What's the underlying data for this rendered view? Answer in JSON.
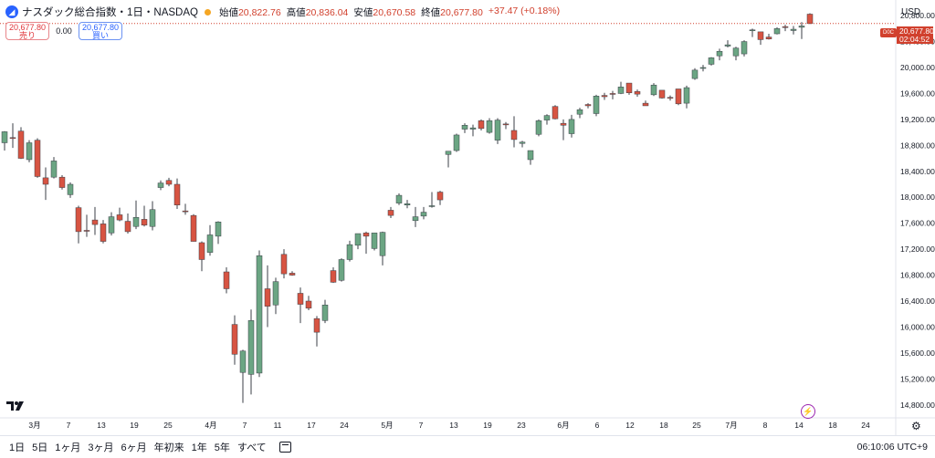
{
  "header": {
    "symbol_name": "ナスダック総合指数・1日・NASDAQ",
    "logo_icon": "nasdaq-logo-icon",
    "ohlc": {
      "open_label": "始値",
      "open_value": "20,822.76",
      "high_label": "高値",
      "high_value": "20,836.04",
      "low_label": "安値",
      "low_value": "20,670.58",
      "close_label": "終値",
      "close_value": "20,677.80",
      "change": "+37.47 (+0.18%)"
    }
  },
  "trade": {
    "sell_price": "20,677.80",
    "sell_label": "売り",
    "spread": "0.00",
    "buy_price": "20,677.80",
    "buy_label": "買い"
  },
  "price_axis": {
    "currency": "USD",
    "badge": "D0C",
    "last_price": "20,677.80",
    "countdown": "02:04:52"
  },
  "toolbar": {
    "ranges": [
      "1日",
      "5日",
      "1ヶ月",
      "3ヶ月",
      "6ヶ月",
      "年初来",
      "1年",
      "5年",
      "すべて"
    ],
    "clock": "06:10:06 UTC+9",
    "calendar_icon": "calendar-icon",
    "settings_icon": "gear-icon"
  },
  "colors": {
    "up": "#6ba583",
    "down": "#d75442",
    "accent": "#2962ff",
    "last": "#d1402d"
  },
  "chart_data": {
    "type": "candlestick",
    "title": "ナスダック総合指数・1日・NASDAQ",
    "ylim": [
      14600,
      20900
    ],
    "y_ticks": [
      14800,
      15200,
      15600,
      16000,
      16400,
      16800,
      17200,
      17600,
      18000,
      18400,
      18800,
      19200,
      19600,
      20000,
      20400,
      20800
    ],
    "x_ticks": [
      "3月",
      "7",
      "13",
      "19",
      "25",
      "4月",
      "7",
      "11",
      "17",
      "24",
      "5月",
      "7",
      "13",
      "19",
      "23",
      "6月",
      "6",
      "12",
      "18",
      "25",
      "7月",
      "8",
      "14",
      "18",
      "24"
    ],
    "grid": false,
    "last_close": 20677.8,
    "candles": [
      {
        "o": 18840,
        "h": 19020,
        "l": 18720,
        "c": 19010
      },
      {
        "o": 18920,
        "h": 19140,
        "l": 18760,
        "c": 18910
      },
      {
        "o": 19020,
        "h": 19080,
        "l": 18590,
        "c": 18600
      },
      {
        "o": 18580,
        "h": 18880,
        "l": 18540,
        "c": 18840
      },
      {
        "o": 18880,
        "h": 18910,
        "l": 18300,
        "c": 18320
      },
      {
        "o": 18300,
        "h": 18460,
        "l": 17960,
        "c": 18200
      },
      {
        "o": 18310,
        "h": 18620,
        "l": 18290,
        "c": 18560
      },
      {
        "o": 18310,
        "h": 18340,
        "l": 18120,
        "c": 18150
      },
      {
        "o": 18040,
        "h": 18230,
        "l": 17990,
        "c": 18200
      },
      {
        "o": 17840,
        "h": 17870,
        "l": 17290,
        "c": 17470
      },
      {
        "o": 17490,
        "h": 17730,
        "l": 17390,
        "c": 17480
      },
      {
        "o": 17650,
        "h": 17850,
        "l": 17420,
        "c": 17580
      },
      {
        "o": 17590,
        "h": 17650,
        "l": 17290,
        "c": 17320
      },
      {
        "o": 17450,
        "h": 17770,
        "l": 17410,
        "c": 17700
      },
      {
        "o": 17730,
        "h": 17840,
        "l": 17630,
        "c": 17650
      },
      {
        "o": 17630,
        "h": 17750,
        "l": 17440,
        "c": 17470
      },
      {
        "o": 17550,
        "h": 17950,
        "l": 17510,
        "c": 17690
      },
      {
        "o": 17660,
        "h": 17870,
        "l": 17550,
        "c": 17570
      },
      {
        "o": 17550,
        "h": 17940,
        "l": 17490,
        "c": 17810
      },
      {
        "o": 18150,
        "h": 18260,
        "l": 18110,
        "c": 18220
      },
      {
        "o": 18260,
        "h": 18300,
        "l": 18170,
        "c": 18200
      },
      {
        "o": 18200,
        "h": 18290,
        "l": 17820,
        "c": 17880
      },
      {
        "o": 17790,
        "h": 17900,
        "l": 17730,
        "c": 17780
      },
      {
        "o": 17720,
        "h": 17740,
        "l": 17320,
        "c": 17320
      },
      {
        "o": 17300,
        "h": 17320,
        "l": 16860,
        "c": 17040
      },
      {
        "o": 17150,
        "h": 17570,
        "l": 17100,
        "c": 17420
      },
      {
        "o": 17400,
        "h": 17630,
        "l": 17280,
        "c": 17620
      },
      {
        "o": 16850,
        "h": 16920,
        "l": 16520,
        "c": 16590
      },
      {
        "o": 16040,
        "h": 16180,
        "l": 15420,
        "c": 15580
      },
      {
        "o": 15300,
        "h": 15650,
        "l": 14830,
        "c": 15630
      },
      {
        "o": 15270,
        "h": 16270,
        "l": 14960,
        "c": 16100
      },
      {
        "o": 15290,
        "h": 17180,
        "l": 15230,
        "c": 17100
      },
      {
        "o": 16590,
        "h": 16950,
        "l": 16000,
        "c": 16320
      },
      {
        "o": 16340,
        "h": 16760,
        "l": 16200,
        "c": 16700
      },
      {
        "o": 17120,
        "h": 17200,
        "l": 16750,
        "c": 16820
      },
      {
        "o": 16830,
        "h": 16860,
        "l": 16790,
        "c": 16800
      },
      {
        "o": 16520,
        "h": 16610,
        "l": 16060,
        "c": 16350
      },
      {
        "o": 16400,
        "h": 16480,
        "l": 16260,
        "c": 16290
      },
      {
        "o": 16130,
        "h": 16170,
        "l": 15700,
        "c": 15920
      },
      {
        "o": 16100,
        "h": 16420,
        "l": 16060,
        "c": 16340
      },
      {
        "o": 16870,
        "h": 16920,
        "l": 16680,
        "c": 16690
      },
      {
        "o": 16720,
        "h": 17060,
        "l": 16700,
        "c": 17040
      },
      {
        "o": 17040,
        "h": 17330,
        "l": 17010,
        "c": 17270
      },
      {
        "o": 17260,
        "h": 17440,
        "l": 17200,
        "c": 17440
      },
      {
        "o": 17450,
        "h": 17470,
        "l": 17130,
        "c": 17400
      },
      {
        "o": 17210,
        "h": 17450,
        "l": 17180,
        "c": 17450
      },
      {
        "o": 17100,
        "h": 17470,
        "l": 16950,
        "c": 17460
      },
      {
        "o": 17800,
        "h": 17850,
        "l": 17680,
        "c": 17720
      },
      {
        "o": 17910,
        "h": 18060,
        "l": 17880,
        "c": 18030
      },
      {
        "o": 17880,
        "h": 17960,
        "l": 17830,
        "c": 17900
      },
      {
        "o": 17640,
        "h": 17850,
        "l": 17540,
        "c": 17700
      },
      {
        "o": 17710,
        "h": 17850,
        "l": 17660,
        "c": 17770
      },
      {
        "o": 17860,
        "h": 18080,
        "l": 17840,
        "c": 17870
      },
      {
        "o": 18080,
        "h": 18100,
        "l": 17880,
        "c": 17960
      },
      {
        "o": 18660,
        "h": 18680,
        "l": 18460,
        "c": 18710
      },
      {
        "o": 18720,
        "h": 18980,
        "l": 18700,
        "c": 18960
      },
      {
        "o": 19050,
        "h": 19140,
        "l": 18990,
        "c": 19110
      },
      {
        "o": 19050,
        "h": 19120,
        "l": 18940,
        "c": 19070
      },
      {
        "o": 19180,
        "h": 19200,
        "l": 19030,
        "c": 19060
      },
      {
        "o": 19000,
        "h": 19220,
        "l": 18980,
        "c": 19180
      },
      {
        "o": 18880,
        "h": 19220,
        "l": 18820,
        "c": 19190
      },
      {
        "o": 19130,
        "h": 19160,
        "l": 19050,
        "c": 19120
      },
      {
        "o": 19030,
        "h": 19250,
        "l": 18770,
        "c": 18890
      },
      {
        "o": 18830,
        "h": 18870,
        "l": 18770,
        "c": 18850
      },
      {
        "o": 18580,
        "h": 18710,
        "l": 18500,
        "c": 18720
      },
      {
        "o": 18970,
        "h": 19200,
        "l": 18940,
        "c": 19180
      },
      {
        "o": 19190,
        "h": 19280,
        "l": 19120,
        "c": 19260
      },
      {
        "o": 19400,
        "h": 19420,
        "l": 19200,
        "c": 19210
      },
      {
        "o": 19140,
        "h": 19200,
        "l": 18880,
        "c": 19110
      },
      {
        "o": 18980,
        "h": 19270,
        "l": 18920,
        "c": 19200
      },
      {
        "o": 19280,
        "h": 19380,
        "l": 19220,
        "c": 19350
      },
      {
        "o": 19430,
        "h": 19450,
        "l": 19370,
        "c": 19410
      },
      {
        "o": 19290,
        "h": 19580,
        "l": 19250,
        "c": 19560
      },
      {
        "o": 19570,
        "h": 19610,
        "l": 19500,
        "c": 19550
      },
      {
        "o": 19600,
        "h": 19640,
        "l": 19510,
        "c": 19590
      },
      {
        "o": 19600,
        "h": 19780,
        "l": 19590,
        "c": 19700
      },
      {
        "o": 19760,
        "h": 19760,
        "l": 19580,
        "c": 19610
      },
      {
        "o": 19630,
        "h": 19660,
        "l": 19550,
        "c": 19590
      },
      {
        "o": 19450,
        "h": 19490,
        "l": 19420,
        "c": 19410
      },
      {
        "o": 19580,
        "h": 19760,
        "l": 19560,
        "c": 19730
      },
      {
        "o": 19650,
        "h": 19650,
        "l": 19520,
        "c": 19530
      },
      {
        "o": 19540,
        "h": 19570,
        "l": 19490,
        "c": 19530
      },
      {
        "o": 19670,
        "h": 19670,
        "l": 19420,
        "c": 19440
      },
      {
        "o": 19450,
        "h": 19720,
        "l": 19370,
        "c": 19690
      },
      {
        "o": 19830,
        "h": 19990,
        "l": 19810,
        "c": 19960
      },
      {
        "o": 20000,
        "h": 20040,
        "l": 19940,
        "c": 20000
      },
      {
        "o": 20050,
        "h": 20160,
        "l": 20030,
        "c": 20150
      },
      {
        "o": 20180,
        "h": 20290,
        "l": 20110,
        "c": 20250
      },
      {
        "o": 20330,
        "h": 20420,
        "l": 20310,
        "c": 20350
      },
      {
        "o": 20180,
        "h": 20320,
        "l": 20110,
        "c": 20300
      },
      {
        "o": 20210,
        "h": 20420,
        "l": 20170,
        "c": 20400
      },
      {
        "o": 20570,
        "h": 20600,
        "l": 20470,
        "c": 20580
      },
      {
        "o": 20550,
        "h": 20540,
        "l": 20350,
        "c": 20430
      },
      {
        "o": 20470,
        "h": 20520,
        "l": 20430,
        "c": 20440
      },
      {
        "o": 20520,
        "h": 20620,
        "l": 20510,
        "c": 20600
      },
      {
        "o": 20630,
        "h": 20660,
        "l": 20560,
        "c": 20620
      },
      {
        "o": 20570,
        "h": 20640,
        "l": 20510,
        "c": 20590
      },
      {
        "o": 20620,
        "h": 20700,
        "l": 20440,
        "c": 20640
      },
      {
        "o": 20822.76,
        "h": 20836.04,
        "l": 20670.58,
        "c": 20677.8
      }
    ]
  }
}
